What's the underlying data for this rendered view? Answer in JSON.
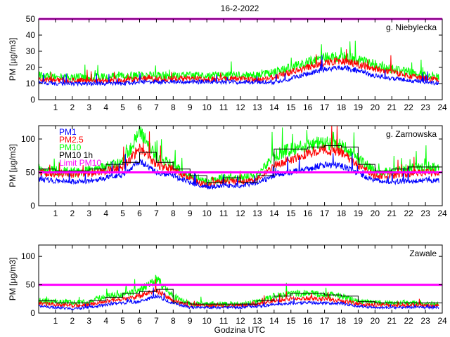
{
  "figure": {
    "date_title": "16-2-2022",
    "x_axis_label": "Godzina UTC"
  },
  "chart_data": [
    {
      "type": "line",
      "title": "g. Niebylecka",
      "xlabel": "",
      "ylabel": "PM [µg/m3]",
      "xlim": [
        0,
        24
      ],
      "ylim": [
        0,
        50
      ],
      "xticks": [
        1,
        2,
        3,
        4,
        5,
        6,
        7,
        8,
        9,
        10,
        11,
        12,
        13,
        14,
        15,
        16,
        17,
        18,
        19,
        20,
        21,
        22,
        23,
        24
      ],
      "yticks": [
        0,
        10,
        20,
        30,
        40,
        50
      ],
      "limit": 50,
      "colors": {
        "PM1": "#0000ff",
        "PM2.5": "#ff0000",
        "PM10": "#00ff00",
        "PM10 1h": "#000000",
        "Limit PM10": "#ff00ff"
      },
      "x_hours": [
        0,
        1,
        2,
        3,
        4,
        5,
        6,
        7,
        8,
        9,
        10,
        11,
        12,
        13,
        14,
        15,
        16,
        17,
        18,
        19,
        20,
        21,
        22,
        23,
        23.8
      ],
      "series": [
        {
          "name": "PM1",
          "values": [
            11,
            10,
            10,
            10,
            10,
            10,
            11,
            11,
            11,
            11,
            11,
            11,
            11,
            11,
            11,
            13,
            16,
            19,
            20,
            18,
            15,
            13,
            12,
            11,
            10
          ]
        },
        {
          "name": "PM2.5",
          "values": [
            13,
            12,
            12,
            12,
            12,
            12,
            13,
            13,
            13,
            13,
            13,
            13,
            13,
            12,
            14,
            17,
            20,
            23,
            24,
            22,
            19,
            17,
            15,
            13,
            13
          ]
        },
        {
          "name": "PM10",
          "values": [
            15,
            14,
            14,
            14,
            14,
            15,
            15,
            15,
            15,
            15,
            15,
            15,
            15,
            15,
            17,
            20,
            23,
            26,
            27,
            25,
            22,
            19,
            17,
            15,
            14
          ]
        }
      ]
    },
    {
      "type": "line",
      "title": "g. Zarnowska",
      "xlabel": "",
      "ylabel": "PM [µg/m3]",
      "xlim": [
        0,
        24
      ],
      "ylim": [
        0,
        120
      ],
      "xticks": [
        1,
        2,
        3,
        4,
        5,
        6,
        7,
        8,
        9,
        10,
        11,
        12,
        13,
        14,
        15,
        16,
        17,
        18,
        19,
        20,
        21,
        22,
        23,
        24
      ],
      "yticks": [
        0,
        50,
        100
      ],
      "limit": 50,
      "legend": [
        "PM1",
        "PM2.5",
        "PM10",
        "PM10 1h",
        "Limit PM10"
      ],
      "colors": {
        "PM1": "#0000ff",
        "PM2.5": "#ff0000",
        "PM10": "#00ff00",
        "PM10 1h": "#000000",
        "Limit PM10": "#ff00ff"
      },
      "x_hours": [
        0,
        1,
        2,
        3,
        4,
        5,
        6,
        7,
        8,
        9,
        10,
        11,
        12,
        13,
        14,
        15,
        16,
        17,
        18,
        19,
        20,
        21,
        22,
        23,
        23.8
      ],
      "series": [
        {
          "name": "PM1",
          "values": [
            40,
            37,
            36,
            37,
            42,
            45,
            68,
            50,
            45,
            35,
            28,
            30,
            30,
            35,
            45,
            50,
            55,
            62,
            60,
            48,
            38,
            36,
            37,
            38,
            38
          ]
        },
        {
          "name": "PM2.5",
          "values": [
            50,
            48,
            47,
            48,
            52,
            58,
            85,
            62,
            55,
            40,
            30,
            38,
            35,
            40,
            60,
            70,
            78,
            85,
            80,
            60,
            45,
            45,
            48,
            50,
            50
          ]
        },
        {
          "name": "PM10",
          "values": [
            55,
            52,
            50,
            52,
            58,
            65,
            110,
            72,
            60,
            45,
            35,
            42,
            40,
            45,
            75,
            85,
            90,
            95,
            90,
            70,
            52,
            52,
            55,
            58,
            58
          ]
        }
      ],
      "hourly_pm10": {
        "name": "PM10 1h",
        "values": [
          55,
          52,
          52,
          55,
          62,
          65,
          80,
          65,
          55,
          45,
          35,
          42,
          35,
          45,
          85,
          85,
          88,
          90,
          88,
          62,
          52,
          55,
          58,
          58
        ]
      }
    },
    {
      "type": "line",
      "title": "Zawale",
      "xlabel": "Godzina UTC",
      "ylabel": "PM [µg/m3]",
      "xlim": [
        0,
        24
      ],
      "ylim": [
        0,
        120
      ],
      "xticks": [
        1,
        2,
        3,
        4,
        5,
        6,
        7,
        8,
        9,
        10,
        11,
        12,
        13,
        14,
        15,
        16,
        17,
        18,
        19,
        20,
        21,
        22,
        23,
        24
      ],
      "yticks": [
        0,
        50,
        100
      ],
      "limit": 50,
      "colors": {
        "PM1": "#0000ff",
        "PM2.5": "#ff0000",
        "PM10": "#00ff00",
        "PM10 1h": "#000000",
        "Limit PM10": "#ff00ff"
      },
      "x_hours": [
        0,
        1,
        2,
        3,
        4,
        5,
        6,
        7,
        8,
        9,
        10,
        11,
        12,
        13,
        14,
        15,
        16,
        17,
        18,
        19,
        20,
        21,
        22,
        23,
        23.8
      ],
      "series": [
        {
          "name": "PM1",
          "values": [
            12,
            10,
            8,
            10,
            15,
            18,
            20,
            30,
            18,
            10,
            10,
            10,
            10,
            12,
            15,
            18,
            18,
            18,
            17,
            12,
            10,
            10,
            10,
            10,
            10
          ]
        },
        {
          "name": "PM2.5",
          "values": [
            18,
            15,
            13,
            15,
            22,
            25,
            30,
            40,
            22,
            13,
            13,
            13,
            13,
            16,
            22,
            25,
            26,
            25,
            22,
            16,
            14,
            14,
            14,
            14,
            13
          ]
        },
        {
          "name": "PM10",
          "values": [
            22,
            20,
            18,
            20,
            30,
            32,
            40,
            60,
            30,
            16,
            16,
            16,
            16,
            20,
            30,
            35,
            35,
            33,
            30,
            20,
            18,
            18,
            18,
            18,
            16
          ]
        }
      ],
      "hourly_pm10": {
        "name": "PM10 1h",
        "values": [
          22,
          18,
          18,
          22,
          28,
          35,
          38,
          42,
          18,
          16,
          16,
          16,
          16,
          22,
          30,
          35,
          35,
          32,
          30,
          20,
          18,
          18,
          18,
          18
        ]
      }
    }
  ]
}
